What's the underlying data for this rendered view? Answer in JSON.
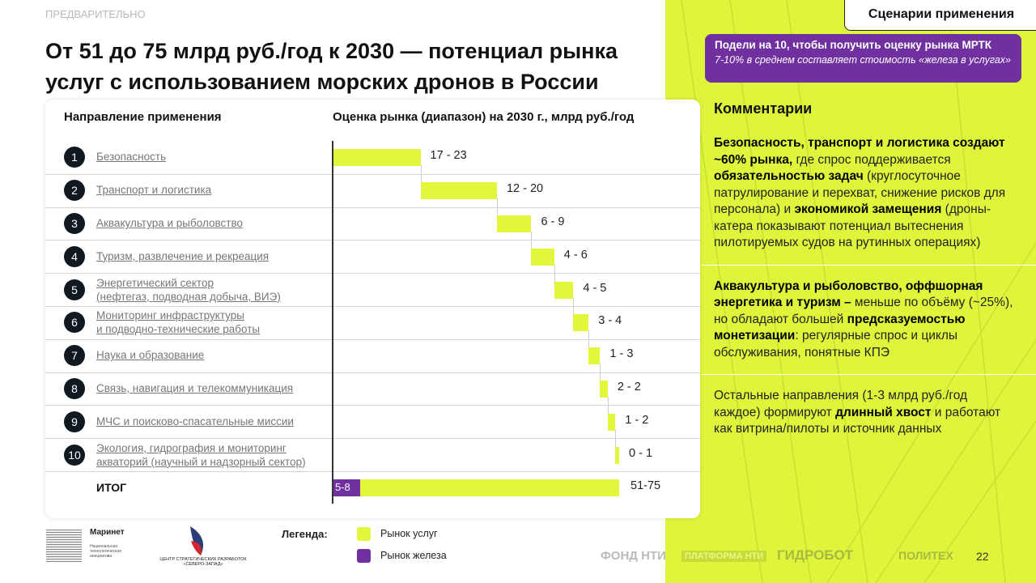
{
  "header": {
    "preliminary": "ПРЕДВАРИТЕЛЬНО",
    "title": "От 51 до 75 млрд руб./год к 2030 — потенциал рынка услуг с использованием морских дронов в России",
    "section_tab": "Сценарии применения"
  },
  "callout": {
    "line1": "Подели на 10, чтобы получить оценку рынка МРТК",
    "line2": "7-10% в среднем составляет стоимость «железа в услугах»"
  },
  "comments": {
    "title": "Комментарии",
    "blocks": [
      [
        {
          "t": "Безопасность, транспорт и логистика создают ~60% рынка,",
          "b": true
        },
        {
          "t": " где спрос поддерживается "
        },
        {
          "t": "обязательностью задач",
          "b": true
        },
        {
          "t": " (круглосуточное патрулирование и перехват, снижение рисков для персонала) и "
        },
        {
          "t": "экономикой замещения",
          "b": true
        },
        {
          "t": " (дроны-катера показывают потенциал вытеснения пилотируемых судов на рутинных операциях)"
        }
      ],
      [
        {
          "t": "Аквакультура и рыболовство, оффшорная энергетика и туризм –",
          "b": true
        },
        {
          "t": " меньше по объёму (~25%), но обладают большей "
        },
        {
          "t": "предсказуемостью монетизации",
          "b": true
        },
        {
          "t": ": регулярные спрос и циклы обслуживания, понятные КПЭ"
        }
      ],
      [
        {
          "t": "Остальные направления (1-3 млрд руб./год каждое) формируют "
        },
        {
          "t": "длинный хвост",
          "b": true
        },
        {
          "t": " и работают как витрина/пилоты и источник данных"
        }
      ]
    ]
  },
  "chart_data": {
    "type": "bar",
    "subtype": "waterfall",
    "column_headers": [
      "Направление применения",
      "Оценка рынка (диапазон) на 2030 г., млрд руб./год"
    ],
    "categories": [
      "Безопасность",
      "Транспорт и логистика",
      "Аквакультура и рыболовство",
      "Туризм, развлечение и рекреация",
      "Энергетический сектор\n(нефтегаз, подводная добыча, ВИЭ)",
      "Мониторинг инфраструктуры\nи подводно-технические работы",
      "Наука и образование",
      "Связь, навигация и телекоммуникация",
      "МЧС и поисково-спасательные миссии",
      "Экология, гидрография и мониторинг\nакваторий (научный и надзорный сектор)"
    ],
    "ranges": [
      [
        17,
        23
      ],
      [
        12,
        20
      ],
      [
        6,
        9
      ],
      [
        4,
        6
      ],
      [
        4,
        5
      ],
      [
        3,
        4
      ],
      [
        1,
        3
      ],
      [
        2,
        2
      ],
      [
        1,
        2
      ],
      [
        0,
        1
      ]
    ],
    "range_labels": [
      "17 - 23",
      "12 - 20",
      "6 - 9",
      "4 - 6",
      "4 - 5",
      "3 - 4",
      "1 - 3",
      "2 - 2",
      "1 - 2",
      "0 - 1"
    ],
    "total": {
      "label": "ИТОГ",
      "range": [
        51,
        75
      ],
      "range_label": "51-75",
      "hardware_range": [
        5,
        8
      ],
      "hardware_label": "5-8"
    },
    "xlim": [
      0,
      75
    ],
    "colors": {
      "services": "#e2f63c",
      "hardware": "#7030a0"
    }
  },
  "legend": {
    "title": "Легенда:",
    "items": [
      {
        "label": "Рынок услуг"
      },
      {
        "label": "Рынок железа"
      }
    ]
  },
  "footer": {
    "marinet": "Маринет",
    "marinet_sub": "Национальная технологическая инициатива",
    "csr": "ЦЕНТР СТРАТЕГИЧЕСКИХ РАЗРАБОТОК «СЕВЕРО-ЗАПАД»",
    "fond": "ФОНД НТИ",
    "platform": "ПЛАТФОРМА НТИ",
    "hydrobot": "ГИДРОБОТ",
    "polytech": "ПОЛИТЕХ",
    "page": "22"
  }
}
